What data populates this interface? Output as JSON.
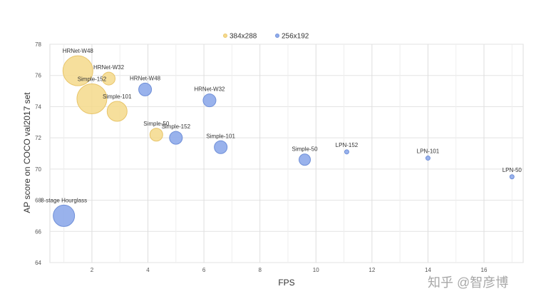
{
  "chart_data": {
    "type": "scatter",
    "title": "",
    "xlabel": "FPS",
    "ylabel": "AP score on COCO val2017 set",
    "xlim": [
      0.5,
      17.4
    ],
    "ylim": [
      64,
      78
    ],
    "xticks": [
      2,
      4,
      6,
      8,
      10,
      12,
      14,
      16
    ],
    "yticks": [
      64,
      66,
      68,
      70,
      72,
      74,
      76,
      78
    ],
    "grid": true,
    "legend_position": "top-center",
    "series": [
      {
        "name": "384x288",
        "color": "#f5d98b",
        "points": [
          {
            "label": "HRNet-W48",
            "x": 1.5,
            "y": 76.3,
            "size": 21
          },
          {
            "label": "HRNet-W32",
            "x": 2.6,
            "y": 75.8,
            "size": 9
          },
          {
            "label": "Simple-152",
            "x": 2.0,
            "y": 74.5,
            "size": 21
          },
          {
            "label": "Simple-101",
            "x": 2.9,
            "y": 73.7,
            "size": 14
          },
          {
            "label": "Simple-50",
            "x": 4.3,
            "y": 72.2,
            "size": 9
          }
        ]
      },
      {
        "name": "256x192",
        "color": "#8eaaea",
        "points": [
          {
            "label": "HRNet-W48",
            "x": 3.9,
            "y": 75.1,
            "size": 9
          },
          {
            "label": "HRNet-W32",
            "x": 6.2,
            "y": 74.4,
            "size": 9
          },
          {
            "label": "Simple-152",
            "x": 5.0,
            "y": 72.0,
            "size": 9
          },
          {
            "label": "Simple-101",
            "x": 6.6,
            "y": 71.4,
            "size": 9
          },
          {
            "label": "Simple-50",
            "x": 9.6,
            "y": 70.6,
            "size": 8
          },
          {
            "label": "LPN-152",
            "x": 11.1,
            "y": 71.1,
            "size": 3
          },
          {
            "label": "LPN-101",
            "x": 14.0,
            "y": 70.7,
            "size": 3
          },
          {
            "label": "LPN-50",
            "x": 17.0,
            "y": 69.5,
            "size": 3
          },
          {
            "label": "8-stage Hourglass",
            "x": 1.0,
            "y": 67.0,
            "size": 15
          }
        ]
      }
    ]
  },
  "watermark": "知乎 @智彦博"
}
